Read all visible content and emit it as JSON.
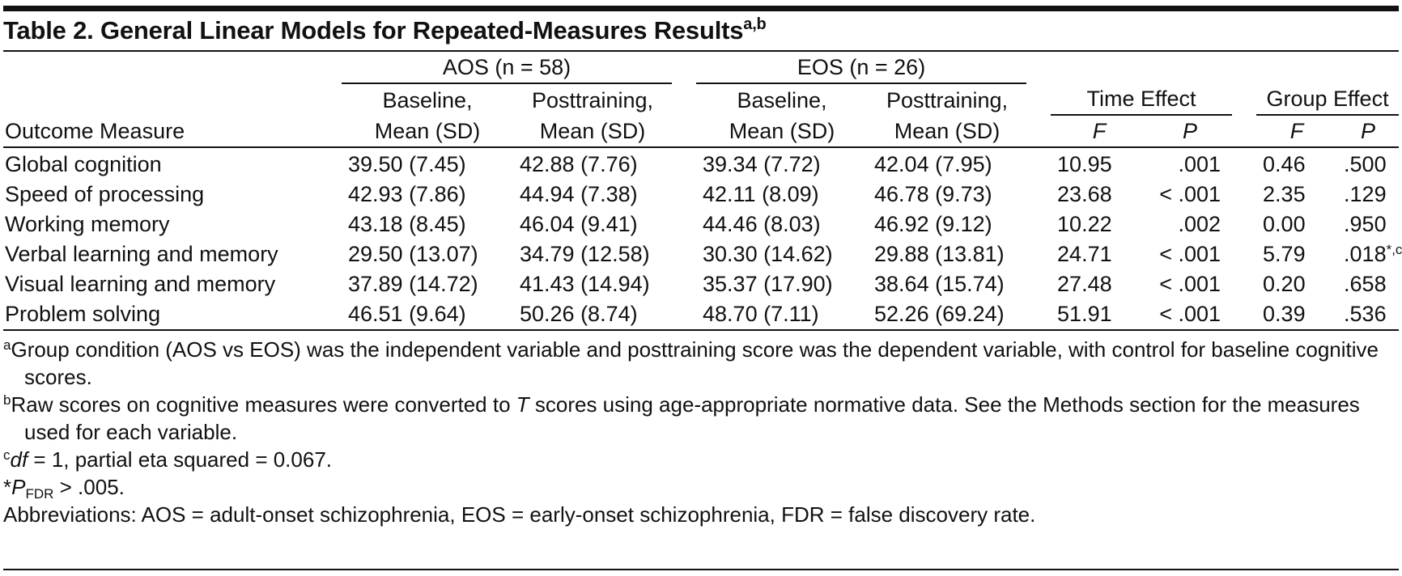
{
  "title": "Table 2. General Linear Models for Repeated-Measures Results",
  "title_sup": "a,b",
  "table": {
    "group_headers": [
      "AOS (n = 58)",
      "EOS (n = 26)",
      "Time Effect",
      "Group Effect"
    ],
    "column_headers": [
      [
        "Outcome Measure"
      ],
      [
        "Baseline,",
        "Mean (SD)"
      ],
      [
        "Posttraining,",
        "Mean (SD)"
      ],
      [
        "Baseline,",
        "Mean (SD)"
      ],
      [
        "Posttraining,",
        "Mean (SD)"
      ],
      [
        "F"
      ],
      [
        "P"
      ],
      [
        "F"
      ],
      [
        "P"
      ]
    ],
    "rows": [
      [
        "Global cognition",
        "39.50 (7.45)",
        "42.88 (7.76)",
        "39.34 (7.72)",
        "42.04 (7.95)",
        "10.95",
        ".001",
        "0.46",
        ".500"
      ],
      [
        "Speed of processing",
        "42.93 (7.86)",
        "44.94 (7.38)",
        "42.11 (8.09)",
        "46.78 (9.73)",
        "23.68",
        "< .001",
        "2.35",
        ".129"
      ],
      [
        "Working memory",
        "43.18 (8.45)",
        "46.04 (9.41)",
        "44.46 (8.03)",
        "46.92 (9.12)",
        "10.22",
        ".002",
        "0.00",
        ".950"
      ],
      [
        "Verbal learning and memory",
        "29.50 (13.07)",
        "34.79 (12.58)",
        "30.30 (14.62)",
        "29.88 (13.81)",
        "24.71",
        "< .001",
        "5.79",
        {
          "text": ".018",
          "sup": "*,c"
        }
      ],
      [
        "Visual learning and memory",
        "37.89 (14.72)",
        "41.43 (14.94)",
        "35.37 (17.90)",
        "38.64 (15.74)",
        "27.48",
        "< .001",
        "0.20",
        ".658"
      ],
      [
        "Problem solving",
        "46.51 (9.64)",
        "50.26 (8.74)",
        "48.70 (7.11)",
        "52.26 (69.24)",
        "51.91",
        "< .001",
        "0.39",
        ".536"
      ]
    ]
  },
  "footnotes": {
    "a": {
      "mark": "a",
      "text": "Group condition (AOS vs EOS) was the independent variable and posttraining score was the dependent variable, with control for baseline cognitive scores."
    },
    "b": {
      "mark": "b",
      "text_before": "Raw scores on cognitive measures were converted to ",
      "italic": "T",
      "text_after": " scores using age-appropriate normative data. See the Methods section for the measures used for each variable."
    },
    "c": {
      "mark": "c",
      "italic": "df",
      "text": " = 1, partial eta squared = 0.067."
    },
    "star": {
      "mark": "*",
      "italic": "P",
      "subscript": "FDR",
      "text": " > .005."
    },
    "abbreviations": "Abbreviations: AOS = adult-onset schizophrenia, EOS = early-onset schizophrenia, FDR = false discovery rate."
  }
}
